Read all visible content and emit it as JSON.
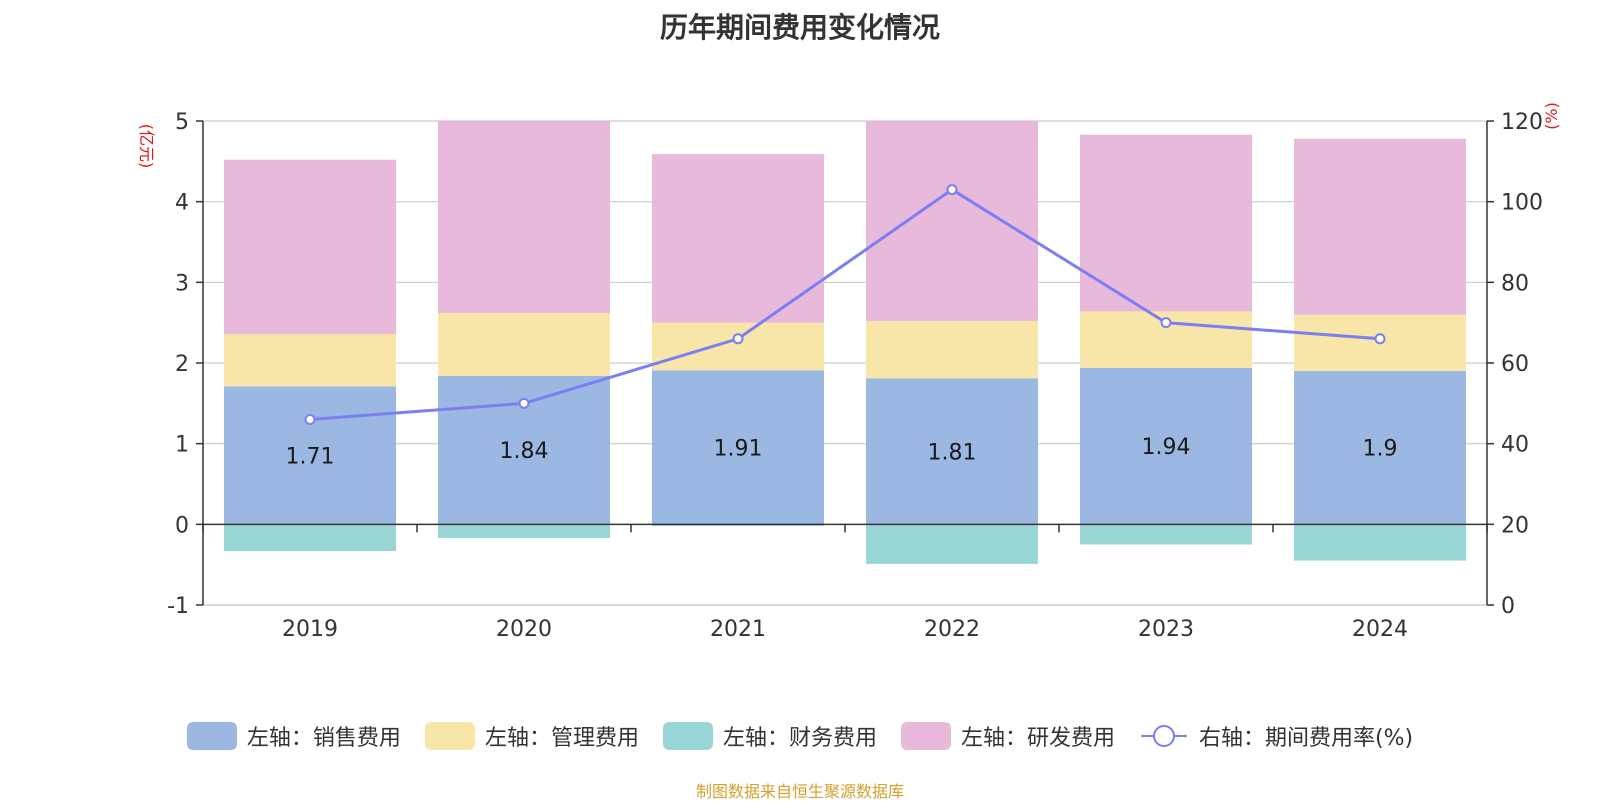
{
  "chart_data": {
    "type": "bar",
    "title": "历年期间费用变化情况",
    "categories": [
      "2019",
      "2020",
      "2021",
      "2022",
      "2023",
      "2024"
    ],
    "series": [
      {
        "name": "左轴：销售费用",
        "axis": "left",
        "stack": "total",
        "color": "#9bb8e2",
        "values": [
          1.71,
          1.84,
          1.91,
          1.81,
          1.94,
          1.9
        ],
        "data_labels": [
          "1.71",
          "1.84",
          "1.91",
          "1.81",
          "1.94",
          "1.9"
        ]
      },
      {
        "name": "左轴：管理费用",
        "axis": "left",
        "stack": "total",
        "color": "#f8e6a8",
        "values": [
          0.65,
          0.78,
          0.59,
          0.71,
          0.7,
          0.7
        ]
      },
      {
        "name": "左轴：财务费用",
        "axis": "left",
        "stack": "total",
        "color": "#98d5d5",
        "values": [
          -0.33,
          -0.17,
          -0.02,
          -0.49,
          -0.25,
          -0.45
        ]
      },
      {
        "name": "左轴：研发费用",
        "axis": "left",
        "stack": "total",
        "color": "#e8b9da",
        "values": [
          2.16,
          2.38,
          2.09,
          2.48,
          2.19,
          2.18
        ]
      },
      {
        "name": "右轴：期间费用率(%)",
        "axis": "right",
        "type": "line",
        "color": "#7b7ff2",
        "values": [
          46,
          50,
          66,
          103,
          70,
          66
        ]
      }
    ],
    "left_axis": {
      "unit": "(亿元)",
      "ylim": [
        -1,
        5
      ],
      "ticks": [
        -1,
        0,
        1,
        2,
        3,
        4,
        5
      ]
    },
    "right_axis": {
      "unit": "(%)",
      "ylim": [
        0,
        120
      ],
      "ticks": [
        0,
        20,
        40,
        60,
        80,
        100,
        120
      ]
    },
    "grid": true,
    "legend_position": "bottom"
  },
  "colors": {
    "unit_label": "#e0161a",
    "source_text": "#d4a02c",
    "axis_line": "#333333",
    "grid_line": "#cccccc"
  },
  "footer": {
    "source": "制图数据来自恒生聚源数据库"
  }
}
